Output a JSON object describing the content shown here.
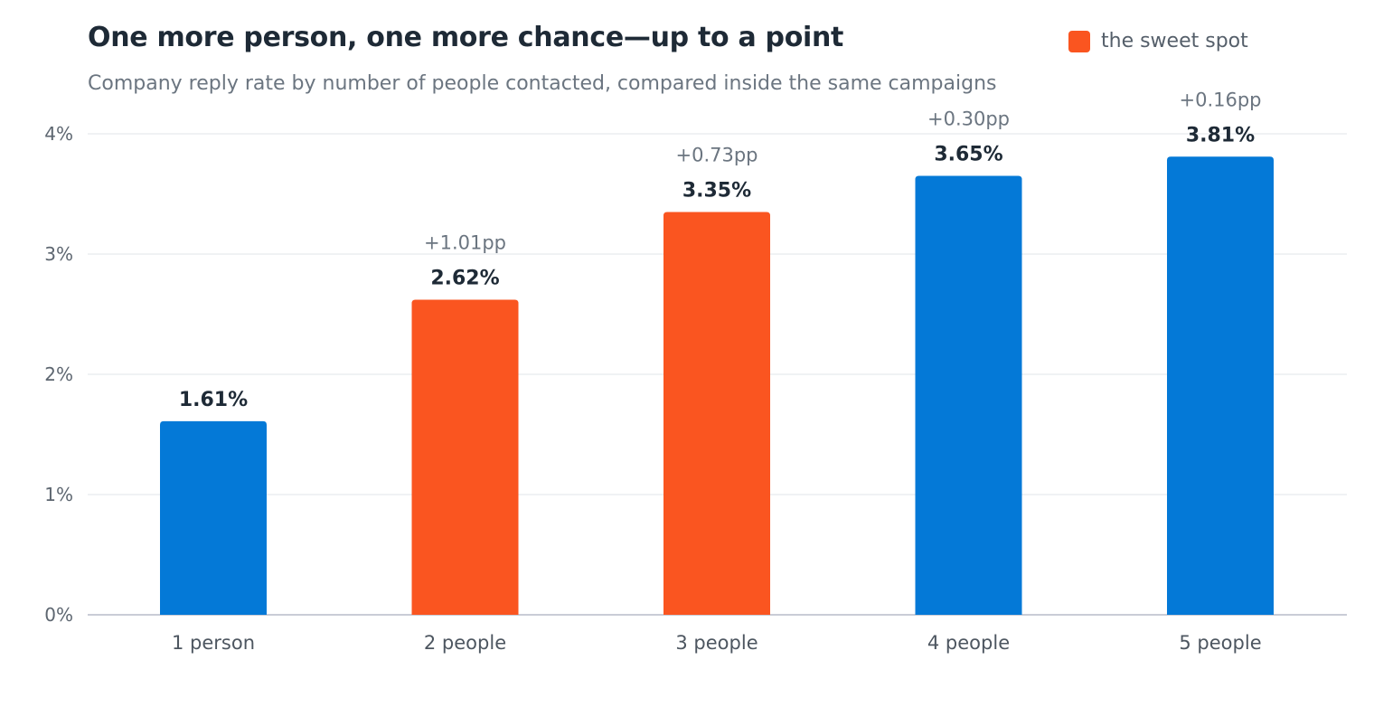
{
  "chart_data": {
    "type": "bar",
    "title": "One more person, one more chance—up to a point",
    "subtitle": "Company reply rate by number of people contacted, compared inside the same campaigns",
    "categories": [
      "1 person",
      "2 people",
      "3 people",
      "4 people",
      "5 people"
    ],
    "values": [
      1.61,
      2.62,
      3.35,
      3.65,
      3.81
    ],
    "value_labels": [
      "1.61%",
      "2.62%",
      "3.35%",
      "3.65%",
      "3.81%"
    ],
    "deltas": [
      "",
      "+1.01pp",
      "+0.73pp",
      "+0.30pp",
      "+0.16pp"
    ],
    "highlighted": [
      false,
      true,
      true,
      false,
      false
    ],
    "ylim": [
      0,
      4
    ],
    "yticks": [
      0,
      1,
      2,
      3,
      4
    ],
    "ytick_labels": [
      "0%",
      "1%",
      "2%",
      "3%",
      "4%"
    ],
    "xlabel": "",
    "ylabel": "",
    "grid": true,
    "legend": {
      "position": "top-right",
      "entries": [
        {
          "label": "the sweet spot",
          "color": "#fa5520"
        }
      ]
    },
    "colors": {
      "default": "#0479d7",
      "highlight": "#fa5520"
    }
  }
}
